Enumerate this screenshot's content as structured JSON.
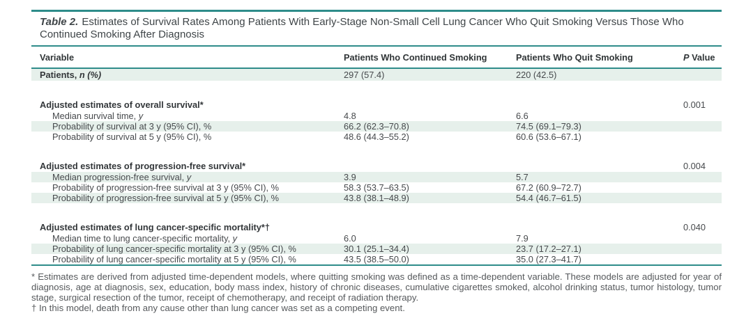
{
  "table": {
    "title_label": "Table 2.",
    "title_text": "Estimates of Survival Rates Among Patients With Early-Stage Non-Small Cell Lung Cancer Who Quit Smoking Versus Those Who Continued Smoking After Diagnosis",
    "columns": [
      "Variable",
      "Patients Who Continued Smoking",
      "Patients Who Quit Smoking"
    ],
    "p_col": {
      "italic": "P",
      "rest": " Value"
    },
    "rows": [
      {
        "label": "Patients, ",
        "label_italic": "n (%)",
        "continued": "297 (57.4)",
        "quit": "220 (42.5)",
        "p": ""
      },
      {
        "label": "Adjusted estimates of overall survival*",
        "p": "0.001"
      },
      {
        "label": "Median survival time, ",
        "label_italic": "y",
        "continued": "4.8",
        "quit": "6.6",
        "p": ""
      },
      {
        "label": "Probability of survival at 3 y (95% CI), %",
        "continued": "66.2 (62.3–70.8)",
        "quit": "74.5 (69.1–79.3)",
        "p": ""
      },
      {
        "label": "Probability of survival at 5 y (95% CI), %",
        "continued": "48.6 (44.3–55.2)",
        "quit": "60.6 (53.6–67.1)",
        "p": ""
      },
      {
        "label": "Adjusted estimates of progression-free survival*",
        "p": "0.004"
      },
      {
        "label": "Median progression-free survival, ",
        "label_italic": "y",
        "continued": "3.9",
        "quit": "5.7",
        "p": ""
      },
      {
        "label": "Probability of progression-free survival at 3 y (95% CI), %",
        "continued": "58.3 (53.7–63.5)",
        "quit": "67.2 (60.9–72.7)",
        "p": ""
      },
      {
        "label": "Probability of progression-free survival at 5 y (95% CI), %",
        "continued": "43.8 (38.1–48.9)",
        "quit": "54.4 (46.7–61.5)",
        "p": ""
      },
      {
        "label": "Adjusted estimates of lung cancer-specific mortality*†",
        "p": "0.040"
      },
      {
        "label": "Median time to lung cancer-specific mortality, ",
        "label_italic": "y",
        "continued": "6.0",
        "quit": "7.9",
        "p": ""
      },
      {
        "label": "Probability of lung cancer-specific mortality at 3 y (95% CI), %",
        "continued": "30.1 (25.1–34.4)",
        "quit": "23.7 (17.2–27.1)",
        "p": ""
      },
      {
        "label": "Probability of lung cancer-specific mortality at 5 y (95% CI), %",
        "continued": "43.5 (38.5–50.0)",
        "quit": "35.0 (27.3–41.7)",
        "p": ""
      }
    ],
    "accent_color": "#2e8c8a",
    "row_shade_color": "#e6f0eb"
  },
  "footnotes": [
    "* Estimates are derived from adjusted time-dependent models, where quitting smoking was defined as a time-dependent variable. These models are adjusted for year of diagnosis, age at diagnosis, sex, education, body mass index, history of chronic diseases, cumulative cigarettes smoked, alcohol drinking status, tumor histology, tumor stage, surgical resection of the tumor, receipt of chemotherapy, and receipt of radiation therapy.",
    "† In this model, death from any cause other than lung cancer was set as a competing event."
  ]
}
